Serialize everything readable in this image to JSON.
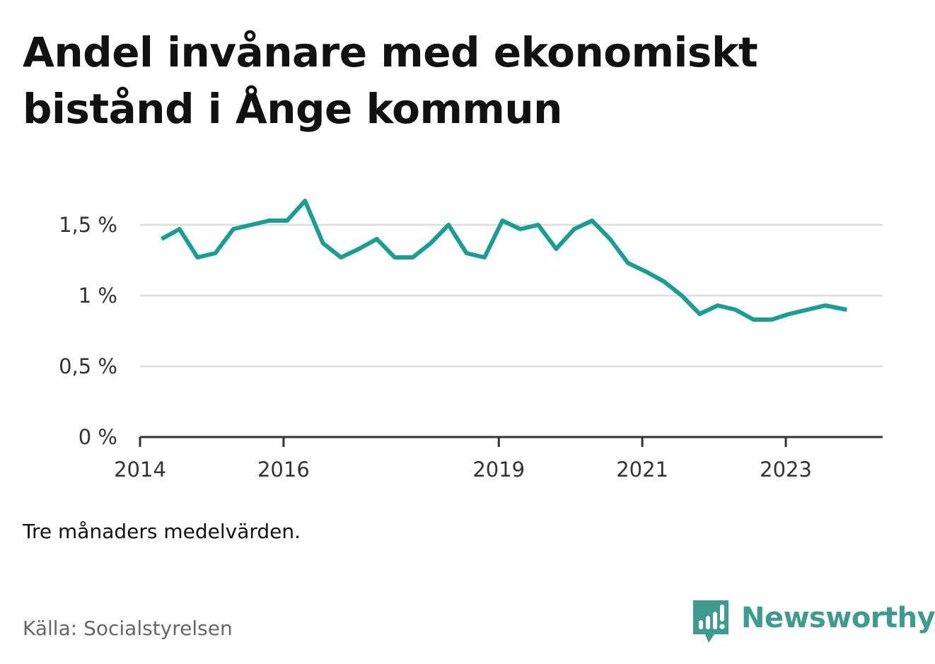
{
  "title": "Andel invånare med ekonomiskt bistånd i Ånge kommun",
  "note": "Tre månaders medelvärden.",
  "source": "Källa: Socialstyrelsen",
  "brand": {
    "name": "Newsworthy",
    "icon": "newsworthy-logo-icon",
    "color": "#3f9a90"
  },
  "chart_data": {
    "type": "line",
    "x_unit": "year",
    "xlim": [
      2014,
      2024.35
    ],
    "ylim": [
      0,
      1.75
    ],
    "x_ticks": [
      {
        "value": 2014,
        "label": "2014"
      },
      {
        "value": 2016,
        "label": "2016"
      },
      {
        "value": 2019,
        "label": "2019"
      },
      {
        "value": 2021,
        "label": "2021"
      },
      {
        "value": 2023,
        "label": "2023"
      }
    ],
    "y_ticks": [
      {
        "value": 0,
        "label": "0 %"
      },
      {
        "value": 0.5,
        "label": "0,5 %"
      },
      {
        "value": 1,
        "label": "1 %"
      },
      {
        "value": 1.5,
        "label": "1,5 %"
      }
    ],
    "grid": true,
    "line_color": "#1a9e94",
    "series": [
      {
        "x": [
          2014.3,
          2014.55,
          2014.8,
          2015.05,
          2015.3,
          2015.55,
          2015.8,
          2016.05,
          2016.3,
          2016.55,
          2016.8,
          2017.05,
          2017.3,
          2017.55,
          2017.8,
          2018.05,
          2018.3,
          2018.55,
          2018.8,
          2019.05,
          2019.3,
          2019.55,
          2019.8,
          2020.05,
          2020.3,
          2020.55,
          2020.8,
          2021.05,
          2021.3,
          2021.55,
          2021.8,
          2022.05,
          2022.3,
          2022.55,
          2022.8,
          2023.05,
          2023.3,
          2023.55,
          2023.85
        ],
        "y": [
          1.4,
          1.47,
          1.27,
          1.3,
          1.47,
          1.5,
          1.53,
          1.53,
          1.67,
          1.37,
          1.27,
          1.33,
          1.4,
          1.27,
          1.27,
          1.37,
          1.5,
          1.3,
          1.27,
          1.53,
          1.47,
          1.5,
          1.33,
          1.47,
          1.53,
          1.4,
          1.23,
          1.17,
          1.1,
          1.0,
          0.87,
          0.93,
          0.9,
          0.83,
          0.83,
          0.87,
          0.9,
          0.93,
          0.9
        ]
      }
    ]
  }
}
